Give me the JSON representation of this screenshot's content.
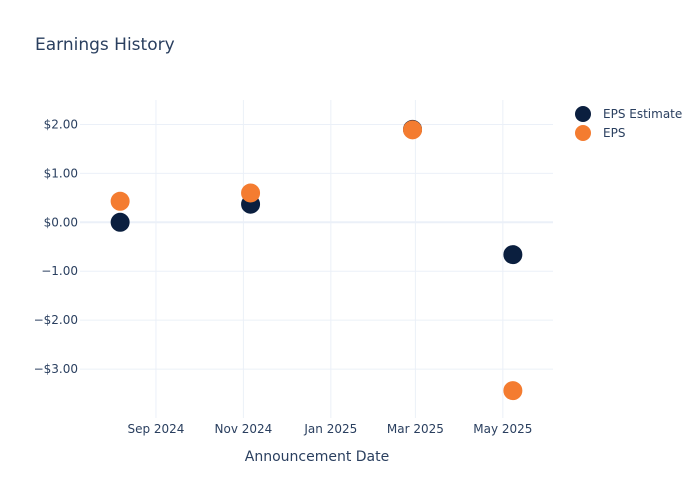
{
  "chart_data": {
    "type": "scatter",
    "title": "Earnings History",
    "xlabel": "Announcement Date",
    "ylabel": "",
    "x_ticks": [
      {
        "date": "2024-09-01",
        "label": "Sep 2024"
      },
      {
        "date": "2024-11-01",
        "label": "Nov 2024"
      },
      {
        "date": "2025-01-01",
        "label": "Jan 2025"
      },
      {
        "date": "2025-03-01",
        "label": "Mar 2025"
      },
      {
        "date": "2025-05-01",
        "label": "May 2025"
      }
    ],
    "y_ticks": [
      {
        "value": 2,
        "label": "$2.00"
      },
      {
        "value": 1,
        "label": "$1.00"
      },
      {
        "value": 0,
        "label": "$0.00"
      },
      {
        "value": -1,
        "label": "−1.00"
      },
      {
        "value": -2,
        "label": "−$2.00"
      },
      {
        "value": -3,
        "label": "−$3.00"
      }
    ],
    "xlim": [
      "2024-07-10",
      "2025-06-05"
    ],
    "ylim": [
      -4.0,
      2.5
    ],
    "grid": true,
    "legend_position": "top-right",
    "series": [
      {
        "name": "EPS Estimate",
        "color": "#0b1f3f",
        "points": [
          {
            "x": "2024-08-07",
            "y": 0.0
          },
          {
            "x": "2024-11-06",
            "y": 0.37
          },
          {
            "x": "2025-02-27",
            "y": 1.9
          },
          {
            "x": "2025-05-08",
            "y": -0.66
          }
        ]
      },
      {
        "name": "EPS",
        "color": "#f47c30",
        "points": [
          {
            "x": "2024-08-07",
            "y": 0.43
          },
          {
            "x": "2024-11-06",
            "y": 0.6
          },
          {
            "x": "2025-02-27",
            "y": 1.89
          },
          {
            "x": "2025-05-08",
            "y": -3.44
          }
        ]
      }
    ]
  }
}
